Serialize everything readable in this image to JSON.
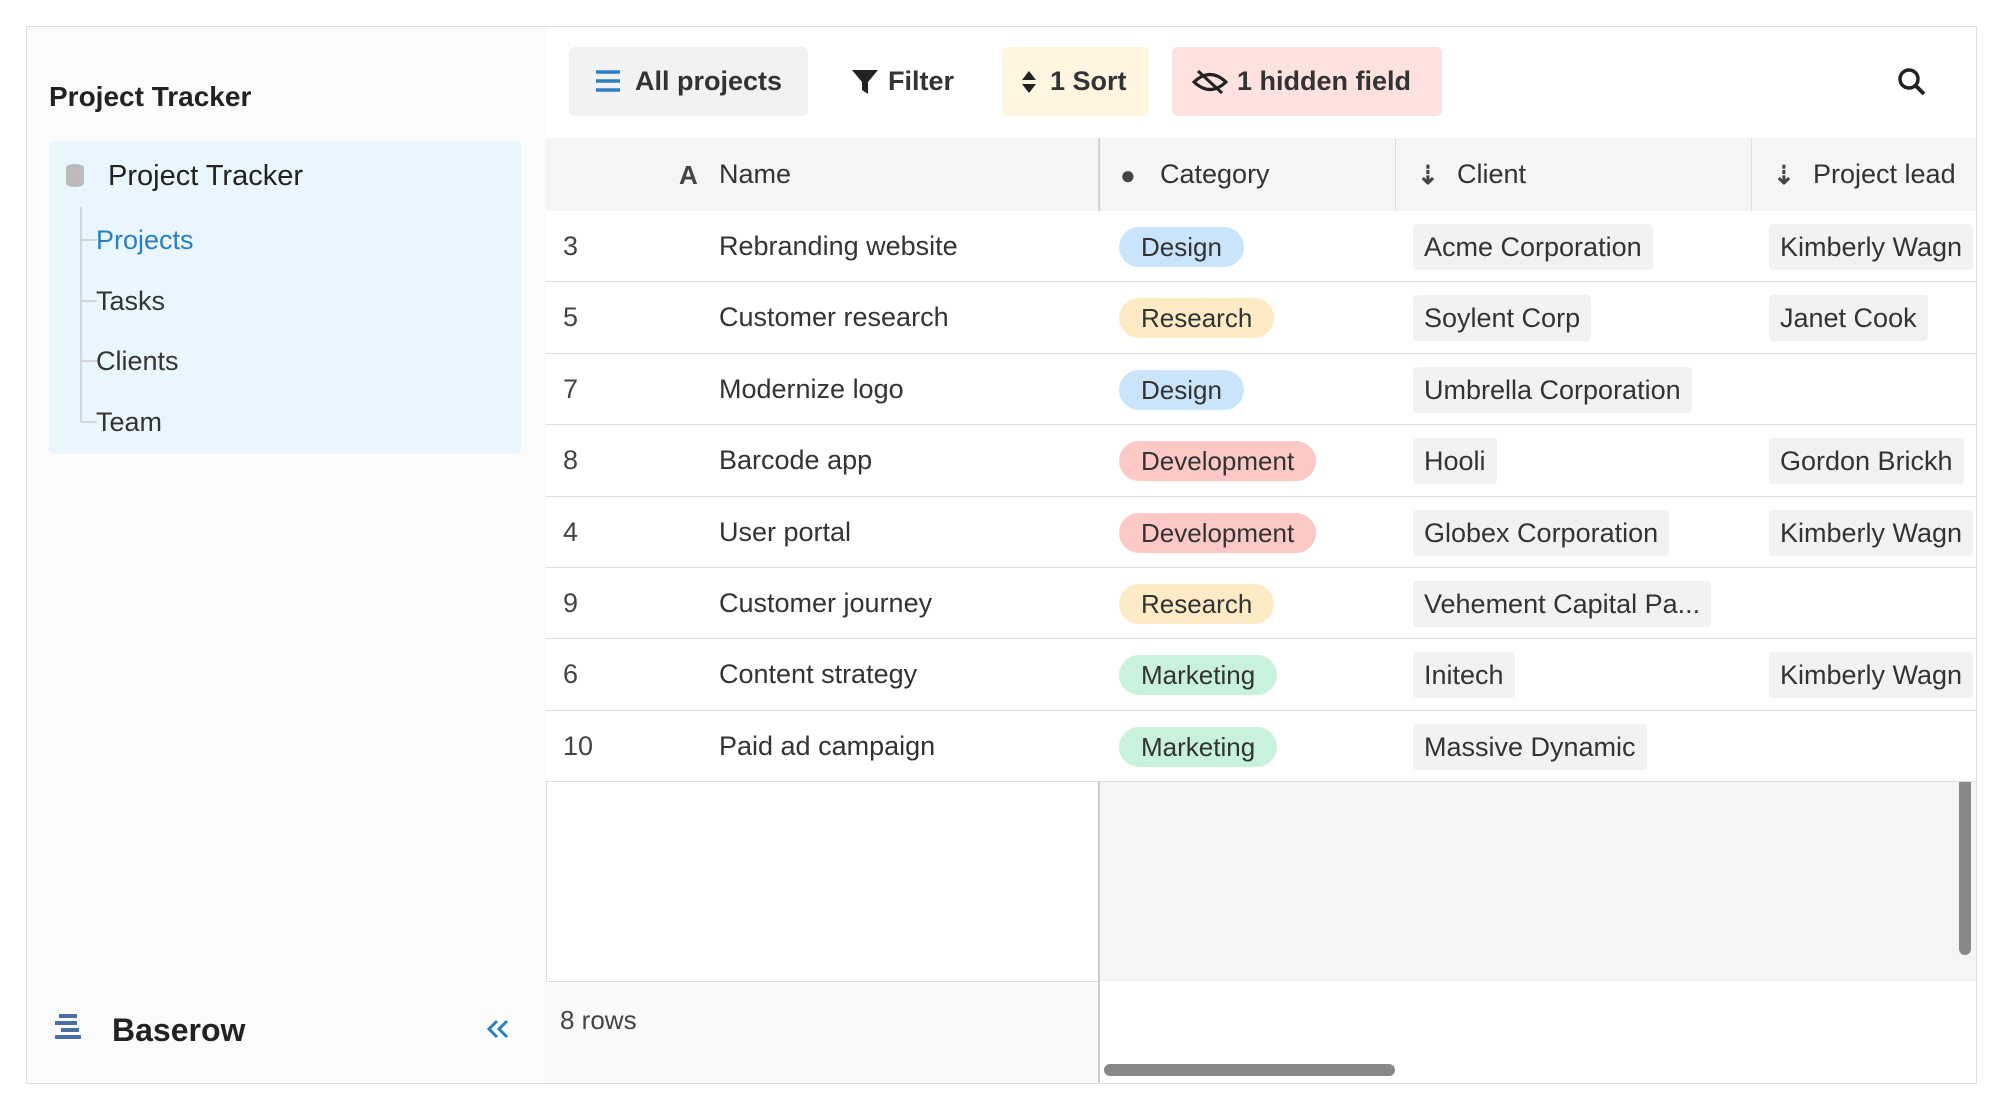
{
  "sidebar": {
    "title": "Project Tracker",
    "database": "Project Tracker",
    "tables": [
      "Projects",
      "Tasks",
      "Clients",
      "Team"
    ],
    "brand": "Baserow"
  },
  "toolbar": {
    "view": "All projects",
    "filter": "Filter",
    "sort": "1 Sort",
    "hidden": "1 hidden field"
  },
  "table": {
    "columns": [
      "Name",
      "Category",
      "Client",
      "Project lead"
    ],
    "category_colors": {
      "Design": "#c9e4fb",
      "Research": "#fdebc6",
      "Development": "#fcc9c6",
      "Marketing": "#c8f2db"
    },
    "rows": [
      {
        "id": "3",
        "name": "Rebranding website",
        "category": "Design",
        "client": "Acme Corporation",
        "lead": "Kimberly Wagn"
      },
      {
        "id": "5",
        "name": "Customer research",
        "category": "Research",
        "client": "Soylent Corp",
        "lead": "Janet Cook"
      },
      {
        "id": "7",
        "name": "Modernize logo",
        "category": "Design",
        "client": "Umbrella Corporation",
        "lead": null
      },
      {
        "id": "8",
        "name": "Barcode app",
        "category": "Development",
        "client": "Hooli",
        "lead": "Gordon Brickh"
      },
      {
        "id": "4",
        "name": "User portal",
        "category": "Development",
        "client": "Globex Corporation",
        "lead": "Kimberly Wagn"
      },
      {
        "id": "9",
        "name": "Customer journey",
        "category": "Research",
        "client": "Vehement Capital Pa...",
        "lead": null
      },
      {
        "id": "6",
        "name": "Content strategy",
        "category": "Marketing",
        "client": "Initech",
        "lead": "Kimberly Wagn"
      },
      {
        "id": "10",
        "name": "Paid ad campaign",
        "category": "Marketing",
        "client": "Massive Dynamic",
        "lead": null
      }
    ]
  },
  "footer": {
    "count": "8 rows"
  }
}
